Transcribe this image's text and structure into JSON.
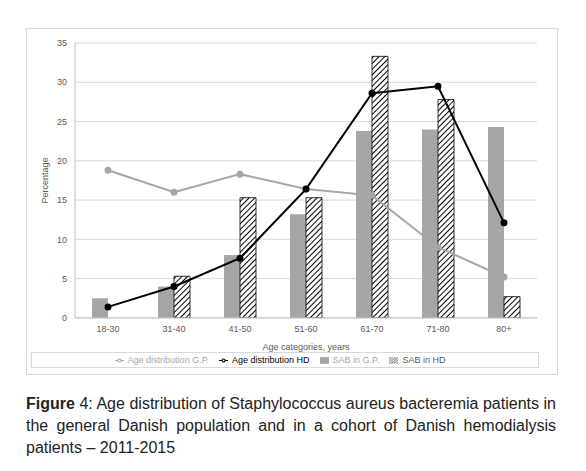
{
  "chart_data": {
    "type": "bar",
    "x_label": "Age categories, years",
    "y_label": "Percentage",
    "categories": [
      "18-30",
      "31-40",
      "41-50",
      "51-60",
      "61-70",
      "71-80",
      "80+"
    ],
    "series": [
      {
        "name": "SAB in G.P.",
        "type": "bar",
        "color": "#a6a6a6",
        "values": [
          2.5,
          4.0,
          8.0,
          13.2,
          23.8,
          24.0,
          24.3
        ]
      },
      {
        "name": "SAB in HD",
        "type": "bar",
        "color": "#000000",
        "values": [
          0,
          5.3,
          15.3,
          15.3,
          33.3,
          27.8,
          2.7
        ]
      },
      {
        "name": "Age distribution G.P.",
        "type": "line",
        "color": "#a6a6a6",
        "marker": "circle",
        "values": [
          18.8,
          16.0,
          18.3,
          16.4,
          15.6,
          9.0,
          5.2
        ]
      },
      {
        "name": "Age distribution HD",
        "type": "line",
        "color": "#000000",
        "marker": "circle",
        "values": [
          1.4,
          4.0,
          7.6,
          16.4,
          28.6,
          29.5,
          12.1
        ]
      }
    ],
    "ylim": [
      0,
      35
    ],
    "yticks": [
      0,
      5,
      10,
      15,
      20,
      25,
      30,
      35
    ],
    "grid": true,
    "legend": "bottom",
    "caption_label": "Figure",
    "caption": "4:  Age distribution of Staphylococcus aureus bacteremia patients in the general Danish population and in a cohort of Danish hemodialysis patients – 2011-2015"
  }
}
